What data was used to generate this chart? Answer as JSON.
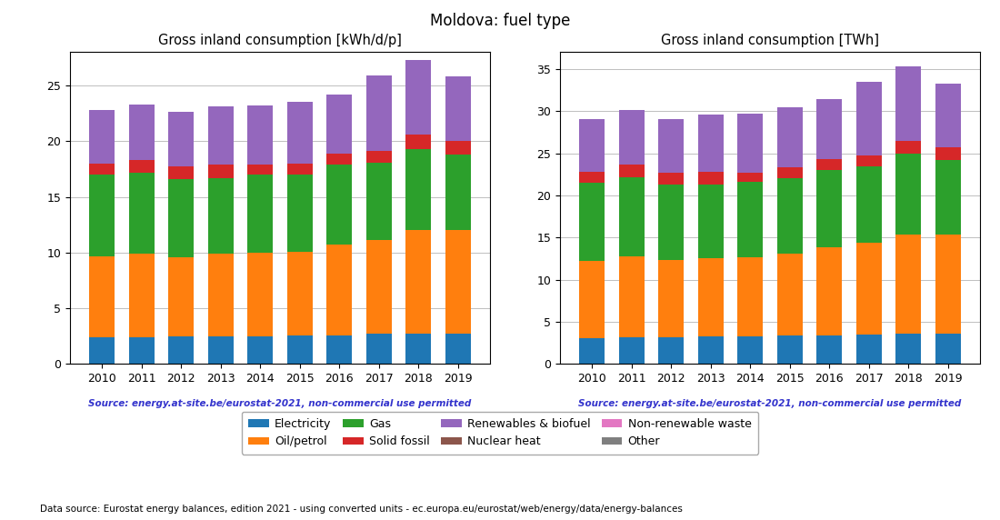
{
  "years": [
    2010,
    2011,
    2012,
    2013,
    2014,
    2015,
    2016,
    2017,
    2018,
    2019
  ],
  "title": "Moldova: fuel type",
  "left_title": "Gross inland consumption [kWh/d/p]",
  "right_title": "Gross inland consumption [TWh]",
  "source_text": "Source: energy.at-site.be/eurostat-2021, non-commercial use permitted",
  "bottom_text": "Data source: Eurostat energy balances, edition 2021 - using converted units - ec.europa.eu/eurostat/web/energy/data/energy-balances",
  "colors": {
    "Electricity": "#1f77b4",
    "Oil/petrol": "#ff7f0e",
    "Gas": "#2ca02c",
    "Solid fossil": "#d62728",
    "Renewables & biofuel": "#9467bd",
    "Nuclear heat": "#8c564b",
    "Non-renewable waste": "#e377c2",
    "Other": "#7f7f7f"
  },
  "left_data": {
    "Electricity": [
      2.4,
      2.4,
      2.5,
      2.5,
      2.5,
      2.6,
      2.6,
      2.7,
      2.7,
      2.7
    ],
    "Oil/petrol": [
      7.3,
      7.5,
      7.1,
      7.4,
      7.5,
      7.5,
      8.1,
      8.4,
      9.3,
      9.3
    ],
    "Gas": [
      7.3,
      7.3,
      7.0,
      6.8,
      7.0,
      6.9,
      7.2,
      7.0,
      7.3,
      6.8
    ],
    "Solid fossil": [
      1.0,
      1.1,
      1.1,
      1.2,
      0.9,
      1.0,
      1.0,
      1.0,
      1.3,
      1.2
    ],
    "Renewables & biofuel": [
      4.8,
      5.0,
      4.9,
      5.2,
      5.3,
      5.5,
      5.3,
      6.8,
      6.7,
      5.8
    ],
    "Nuclear heat": [
      0.0,
      0.0,
      0.0,
      0.0,
      0.0,
      0.0,
      0.0,
      0.0,
      0.0,
      0.0
    ],
    "Non-renewable waste": [
      0.0,
      0.0,
      0.0,
      0.0,
      0.0,
      0.0,
      0.0,
      0.0,
      0.0,
      0.0
    ],
    "Other": [
      0.0,
      0.0,
      0.0,
      0.0,
      0.0,
      0.0,
      0.0,
      0.0,
      0.0,
      0.0
    ]
  },
  "right_data": {
    "Electricity": [
      3.1,
      3.2,
      3.2,
      3.3,
      3.3,
      3.4,
      3.4,
      3.5,
      3.6,
      3.6
    ],
    "Oil/petrol": [
      9.1,
      9.6,
      9.1,
      9.3,
      9.4,
      9.7,
      10.4,
      10.9,
      11.8,
      11.8
    ],
    "Gas": [
      9.3,
      9.3,
      9.0,
      8.7,
      8.9,
      8.9,
      9.2,
      9.0,
      9.5,
      8.8
    ],
    "Solid fossil": [
      1.3,
      1.6,
      1.4,
      1.5,
      1.1,
      1.3,
      1.3,
      1.3,
      1.6,
      1.5
    ],
    "Renewables & biofuel": [
      6.2,
      6.4,
      6.3,
      6.8,
      7.0,
      7.1,
      7.1,
      8.8,
      8.8,
      7.5
    ],
    "Nuclear heat": [
      0.0,
      0.0,
      0.0,
      0.0,
      0.0,
      0.0,
      0.0,
      0.0,
      0.0,
      0.0
    ],
    "Non-renewable waste": [
      0.0,
      0.0,
      0.0,
      0.0,
      0.0,
      0.0,
      0.0,
      0.0,
      0.0,
      0.0
    ],
    "Other": [
      0.0,
      0.0,
      0.0,
      0.0,
      0.0,
      0.0,
      0.0,
      0.0,
      0.0,
      0.0
    ]
  },
  "left_ylim": [
    0,
    28
  ],
  "right_ylim": [
    0,
    37
  ],
  "left_yticks": [
    0,
    5,
    10,
    15,
    20,
    25
  ],
  "right_yticks": [
    0,
    5,
    10,
    15,
    20,
    25,
    30,
    35
  ],
  "source_color": "#3333cc"
}
